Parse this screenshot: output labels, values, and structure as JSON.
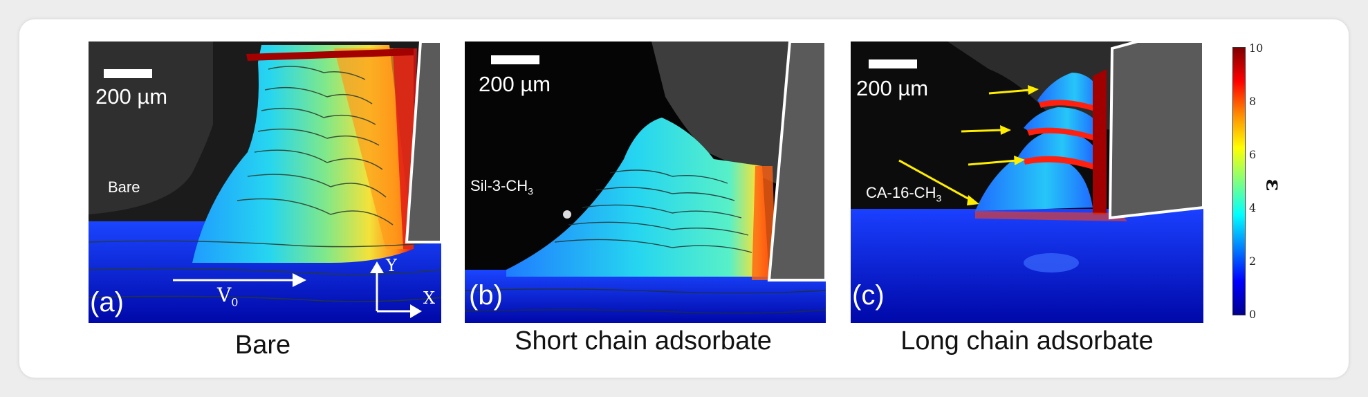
{
  "panels": [
    {
      "letter": "(a)",
      "scale": "200 µm",
      "surface": "Bare",
      "caption": "Bare",
      "v0_base": "V",
      "v0_sub": "0",
      "axis_y": "Y",
      "axis_x": "X"
    },
    {
      "letter": "(b)",
      "scale": "200 µm",
      "surface_base": "Sil-3-CH",
      "surface_sub": "3",
      "caption": "Short chain adsorbate"
    },
    {
      "letter": "(c)",
      "scale": "200 µm",
      "surface_base": "CA-16-CH",
      "surface_sub": "3",
      "caption": "Long chain adsorbate"
    }
  ],
  "colorbar": {
    "label": "ε",
    "ticks": [
      "10",
      "8",
      "6",
      "4",
      "2",
      "0"
    ],
    "colors": [
      "#7f0000",
      "#ff0000",
      "#ff8c00",
      "#ffff00",
      "#7fff7f",
      "#00ffff",
      "#0080ff",
      "#0000ff",
      "#00008f"
    ]
  },
  "arrow_color": "#ffee00"
}
